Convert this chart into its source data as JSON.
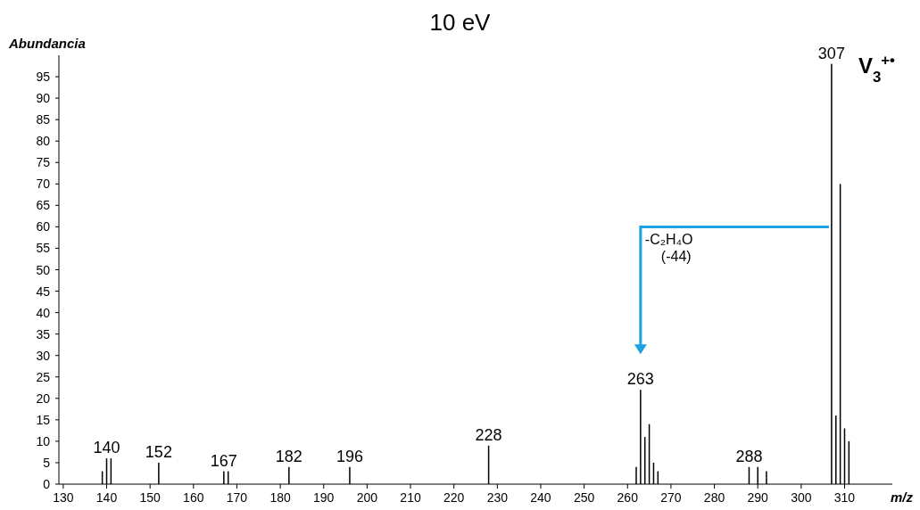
{
  "chart_data": {
    "type": "bar",
    "title": "10 eV",
    "xlabel": "m/z",
    "ylabel": "Abundancia",
    "x": [
      139,
      140,
      141,
      152,
      167,
      168,
      182,
      196,
      228,
      262,
      263,
      264,
      265,
      266,
      267,
      288,
      290,
      292,
      307,
      308,
      309,
      310,
      311
    ],
    "series": [
      {
        "color": "#000000",
        "values": [
          3,
          6,
          6,
          5,
          3,
          3,
          4,
          4,
          9,
          4,
          22,
          11,
          14,
          5,
          3,
          4,
          4,
          3,
          98,
          16,
          70,
          13,
          10
        ]
      }
    ],
    "xlim": [
      129,
      321
    ],
    "xticks": [
      130,
      140,
      150,
      160,
      170,
      180,
      190,
      200,
      210,
      220,
      230,
      240,
      250,
      260,
      270,
      280,
      290,
      300,
      310
    ],
    "ylim": [
      0,
      100
    ],
    "yticks": [
      0,
      5,
      10,
      15,
      20,
      25,
      30,
      35,
      40,
      45,
      50,
      55,
      60,
      65,
      70,
      75,
      80,
      85,
      90,
      95
    ],
    "grid": false,
    "annotations": [
      {
        "text": "140",
        "x": 140,
        "y": 6
      },
      {
        "text": "152",
        "x": 152,
        "y": 5
      },
      {
        "text": "167",
        "x": 167,
        "y": 3
      },
      {
        "text": "182",
        "x": 182,
        "y": 4
      },
      {
        "text": "196",
        "x": 196,
        "y": 4
      },
      {
        "text": "228",
        "x": 228,
        "y": 9
      },
      {
        "text": "263",
        "x": 263,
        "y": 22
      },
      {
        "text": "288",
        "x": 288,
        "y": 4
      },
      {
        "text": "307",
        "x": 307,
        "y": 98
      },
      {
        "text": "V$_{3}$$^{+•}$",
        "x": 307,
        "y": 98
      },
      "-C₂H₄O\n(-44)"
    ]
  }
}
